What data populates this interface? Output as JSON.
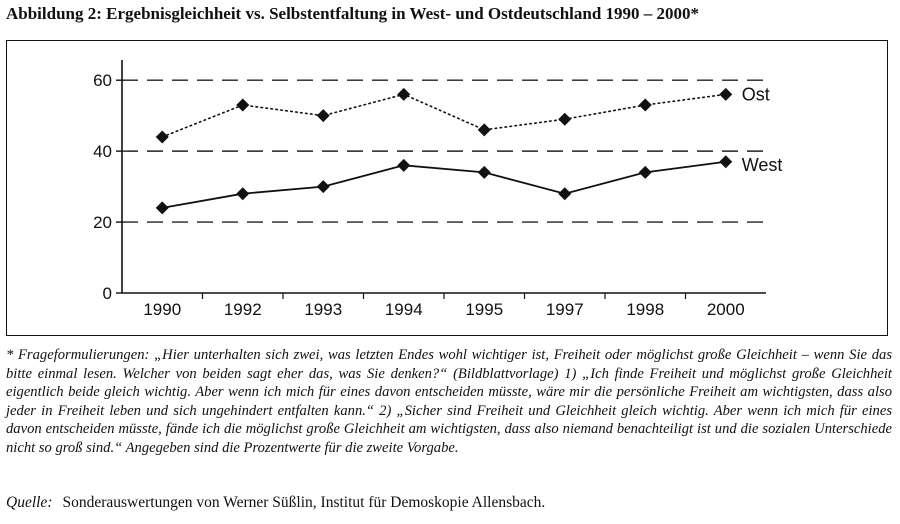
{
  "title": "Abbildung 2: Ergebnisgleichheit vs. Selbstentfaltung in West- und Ostdeutschland 1990 – 2000*",
  "footnote": "* Frageformulierungen: „Hier unterhalten sich zwei, was letzten Endes wohl wichtiger ist, Freiheit oder möglichst große Gleichheit – wenn Sie das bitte einmal lesen. Welcher von beiden sagt eher das, was Sie denken?“ (Bildblattvorlage) 1) „Ich finde Freiheit und möglichst große Gleichheit eigentlich beide gleich wichtig. Aber wenn ich mich für eines davon entscheiden müsste, wäre mir die persönliche Freiheit am wichtigsten, dass also jeder in Freiheit leben und sich ungehindert entfalten kann.“ 2) „Sicher sind Freiheit und Gleichheit gleich wichtig. Aber wenn ich mich für eines davon entscheiden müsste, fände ich die möglichst große Gleichheit am wichtigsten, dass also niemand benachteiligt ist und die sozialen Unterschiede nicht so groß sind.“ Angegeben sind die Prozentwerte für die zweite Vorgabe.",
  "source": {
    "label": "Quelle:",
    "text": "Sonderauswertungen von Werner Süßlin, Institut für Demoskopie Allensbach."
  },
  "chart_data": {
    "type": "line",
    "categories": [
      "1990",
      "1992",
      "1993",
      "1994",
      "1995",
      "1997",
      "1998",
      "2000"
    ],
    "series": [
      {
        "name": "Ost",
        "values": [
          44,
          53,
          50,
          56,
          46,
          49,
          53,
          56
        ],
        "style": "dotted"
      },
      {
        "name": "West",
        "values": [
          24,
          28,
          30,
          36,
          34,
          28,
          34,
          37
        ],
        "style": "solid"
      }
    ],
    "yticks": [
      0,
      20,
      40,
      60
    ],
    "ylim": [
      0,
      64
    ],
    "grid": "dashed horizontal at 20, 40, 60",
    "colors": {
      "line": "#111111",
      "grid": "#222222"
    }
  }
}
